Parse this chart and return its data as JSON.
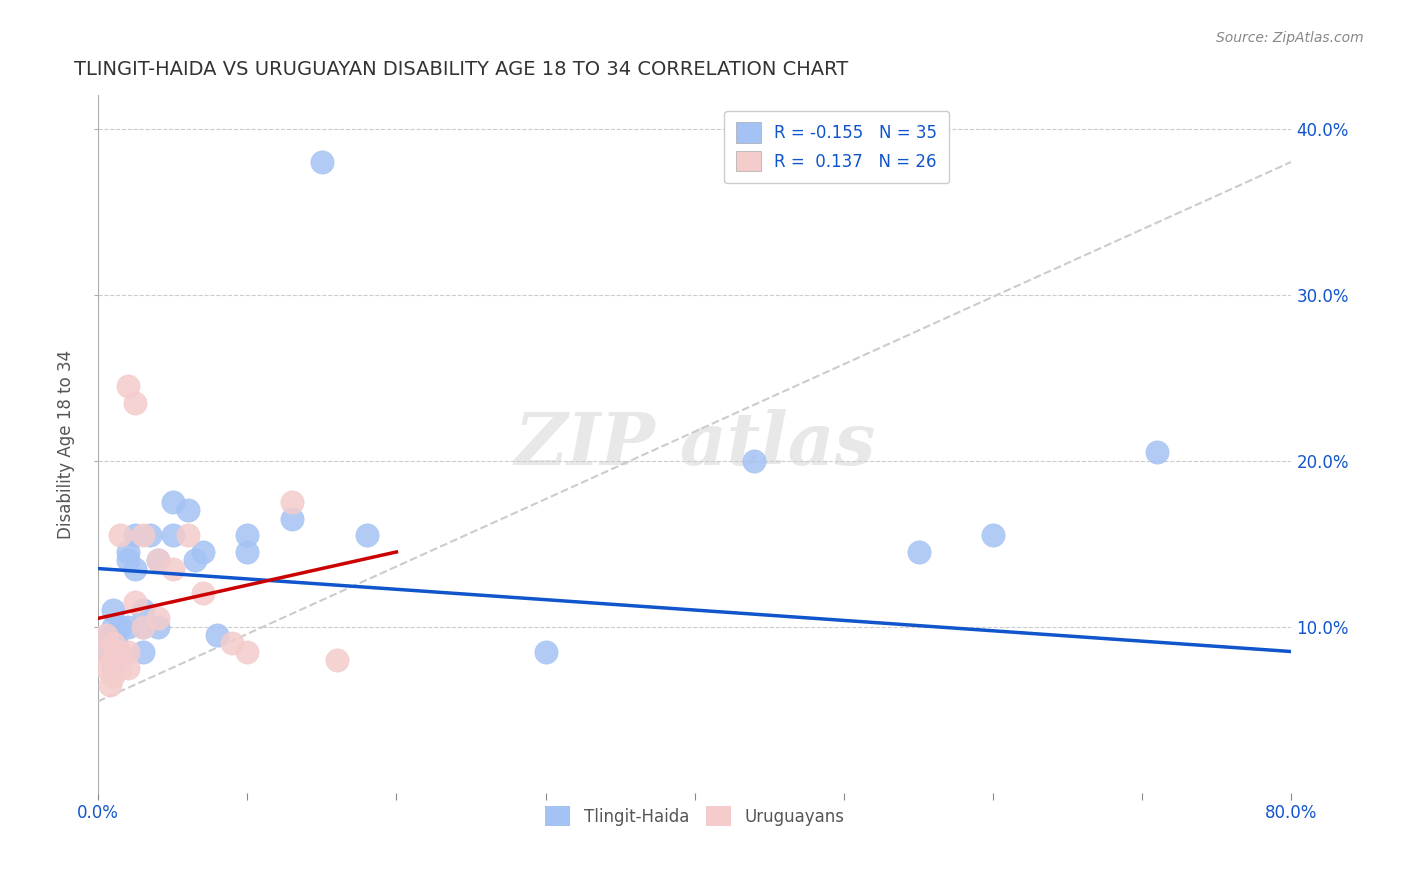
{
  "title": "TLINGIT-HAIDA VS URUGUAYAN DISABILITY AGE 18 TO 34 CORRELATION CHART",
  "source": "Source: ZipAtlas.com",
  "ylabel": "Disability Age 18 to 34",
  "xlim": [
    0.0,
    0.8
  ],
  "ylim": [
    0.0,
    0.42
  ],
  "xticks": [
    0.0,
    0.1,
    0.2,
    0.3,
    0.4,
    0.5,
    0.6,
    0.7,
    0.8
  ],
  "yticks": [
    0.1,
    0.2,
    0.3,
    0.4
  ],
  "xticklabels_show": [
    "0.0%",
    "80.0%"
  ],
  "yticklabels": [
    "10.0%",
    "20.0%",
    "30.0%",
    "40.0%"
  ],
  "legend1_label": "R = -0.155   N = 35",
  "legend2_label": "R =  0.137   N = 26",
  "blue_color": "#a4c2f4",
  "pink_color": "#f4cccc",
  "blue_line_color": "#1155cc",
  "pink_line_color": "#cc0000",
  "dashed_line_color": "#cccccc",
  "grid_color": "#cccccc",
  "background_color": "#ffffff",
  "blue_dots_x": [
    0.005,
    0.008,
    0.01,
    0.01,
    0.01,
    0.012,
    0.015,
    0.015,
    0.02,
    0.02,
    0.02,
    0.025,
    0.025,
    0.03,
    0.03,
    0.03,
    0.035,
    0.04,
    0.04,
    0.05,
    0.05,
    0.06,
    0.065,
    0.07,
    0.08,
    0.1,
    0.1,
    0.13,
    0.15,
    0.18,
    0.3,
    0.44,
    0.55,
    0.6,
    0.71
  ],
  "blue_dots_y": [
    0.085,
    0.095,
    0.075,
    0.1,
    0.11,
    0.09,
    0.085,
    0.1,
    0.1,
    0.14,
    0.145,
    0.135,
    0.155,
    0.1,
    0.11,
    0.085,
    0.155,
    0.1,
    0.14,
    0.155,
    0.175,
    0.17,
    0.14,
    0.145,
    0.095,
    0.145,
    0.155,
    0.165,
    0.38,
    0.155,
    0.085,
    0.2,
    0.145,
    0.155,
    0.205
  ],
  "pink_dots_x": [
    0.005,
    0.005,
    0.005,
    0.008,
    0.01,
    0.01,
    0.01,
    0.015,
    0.015,
    0.015,
    0.02,
    0.02,
    0.02,
    0.025,
    0.025,
    0.03,
    0.03,
    0.04,
    0.04,
    0.05,
    0.06,
    0.07,
    0.09,
    0.1,
    0.13,
    0.16
  ],
  "pink_dots_y": [
    0.075,
    0.085,
    0.095,
    0.065,
    0.07,
    0.08,
    0.09,
    0.075,
    0.085,
    0.155,
    0.075,
    0.085,
    0.245,
    0.115,
    0.235,
    0.1,
    0.155,
    0.105,
    0.14,
    0.135,
    0.155,
    0.12,
    0.09,
    0.085,
    0.175,
    0.08
  ],
  "blue_line_x": [
    0.0,
    0.8
  ],
  "blue_line_y": [
    0.135,
    0.085
  ],
  "pink_line_x": [
    0.0,
    0.2
  ],
  "pink_line_y": [
    0.105,
    0.145
  ],
  "dashed_line_x": [
    0.0,
    0.8
  ],
  "dashed_line_y": [
    0.055,
    0.38
  ],
  "figsize": [
    14.06,
    8.92
  ],
  "dpi": 100
}
